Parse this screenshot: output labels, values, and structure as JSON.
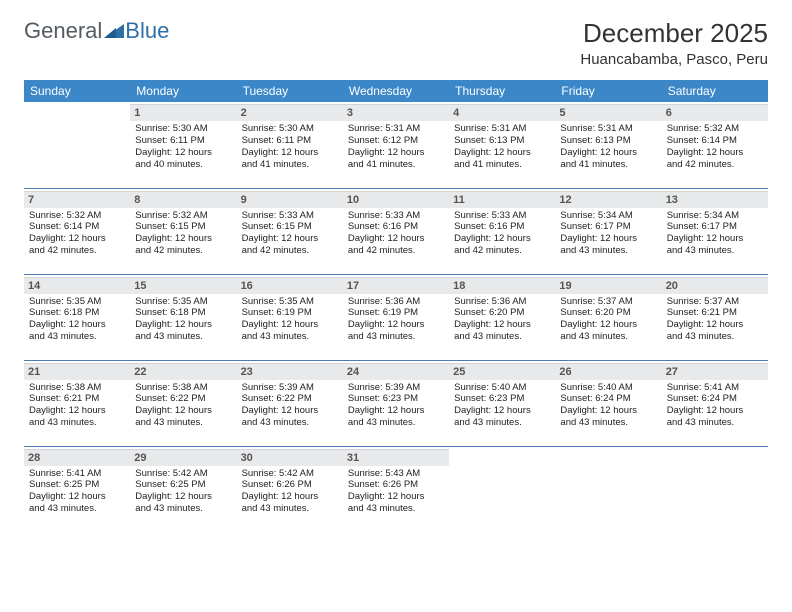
{
  "brand": {
    "part1": "General",
    "part2": "Blue"
  },
  "title": "December 2025",
  "location": "Huancabamba, Pasco, Peru",
  "colors": {
    "header_bg": "#3b87c8",
    "header_fg": "#ffffff",
    "daynum_bg": "#e8e9ea",
    "rule": "#4a7db0",
    "logo_gray": "#555b60",
    "logo_blue": "#2f6fa8"
  },
  "weekdays": [
    "Sunday",
    "Monday",
    "Tuesday",
    "Wednesday",
    "Thursday",
    "Friday",
    "Saturday"
  ],
  "weeks": [
    [
      {
        "n": "",
        "empty": true
      },
      {
        "n": "1",
        "sunrise": "Sunrise: 5:30 AM",
        "sunset": "Sunset: 6:11 PM",
        "day1": "Daylight: 12 hours",
        "day2": "and 40 minutes."
      },
      {
        "n": "2",
        "sunrise": "Sunrise: 5:30 AM",
        "sunset": "Sunset: 6:11 PM",
        "day1": "Daylight: 12 hours",
        "day2": "and 41 minutes."
      },
      {
        "n": "3",
        "sunrise": "Sunrise: 5:31 AM",
        "sunset": "Sunset: 6:12 PM",
        "day1": "Daylight: 12 hours",
        "day2": "and 41 minutes."
      },
      {
        "n": "4",
        "sunrise": "Sunrise: 5:31 AM",
        "sunset": "Sunset: 6:13 PM",
        "day1": "Daylight: 12 hours",
        "day2": "and 41 minutes."
      },
      {
        "n": "5",
        "sunrise": "Sunrise: 5:31 AM",
        "sunset": "Sunset: 6:13 PM",
        "day1": "Daylight: 12 hours",
        "day2": "and 41 minutes."
      },
      {
        "n": "6",
        "sunrise": "Sunrise: 5:32 AM",
        "sunset": "Sunset: 6:14 PM",
        "day1": "Daylight: 12 hours",
        "day2": "and 42 minutes."
      }
    ],
    [
      {
        "n": "7",
        "sunrise": "Sunrise: 5:32 AM",
        "sunset": "Sunset: 6:14 PM",
        "day1": "Daylight: 12 hours",
        "day2": "and 42 minutes."
      },
      {
        "n": "8",
        "sunrise": "Sunrise: 5:32 AM",
        "sunset": "Sunset: 6:15 PM",
        "day1": "Daylight: 12 hours",
        "day2": "and 42 minutes."
      },
      {
        "n": "9",
        "sunrise": "Sunrise: 5:33 AM",
        "sunset": "Sunset: 6:15 PM",
        "day1": "Daylight: 12 hours",
        "day2": "and 42 minutes."
      },
      {
        "n": "10",
        "sunrise": "Sunrise: 5:33 AM",
        "sunset": "Sunset: 6:16 PM",
        "day1": "Daylight: 12 hours",
        "day2": "and 42 minutes."
      },
      {
        "n": "11",
        "sunrise": "Sunrise: 5:33 AM",
        "sunset": "Sunset: 6:16 PM",
        "day1": "Daylight: 12 hours",
        "day2": "and 42 minutes."
      },
      {
        "n": "12",
        "sunrise": "Sunrise: 5:34 AM",
        "sunset": "Sunset: 6:17 PM",
        "day1": "Daylight: 12 hours",
        "day2": "and 43 minutes."
      },
      {
        "n": "13",
        "sunrise": "Sunrise: 5:34 AM",
        "sunset": "Sunset: 6:17 PM",
        "day1": "Daylight: 12 hours",
        "day2": "and 43 minutes."
      }
    ],
    [
      {
        "n": "14",
        "sunrise": "Sunrise: 5:35 AM",
        "sunset": "Sunset: 6:18 PM",
        "day1": "Daylight: 12 hours",
        "day2": "and 43 minutes."
      },
      {
        "n": "15",
        "sunrise": "Sunrise: 5:35 AM",
        "sunset": "Sunset: 6:18 PM",
        "day1": "Daylight: 12 hours",
        "day2": "and 43 minutes."
      },
      {
        "n": "16",
        "sunrise": "Sunrise: 5:35 AM",
        "sunset": "Sunset: 6:19 PM",
        "day1": "Daylight: 12 hours",
        "day2": "and 43 minutes."
      },
      {
        "n": "17",
        "sunrise": "Sunrise: 5:36 AM",
        "sunset": "Sunset: 6:19 PM",
        "day1": "Daylight: 12 hours",
        "day2": "and 43 minutes."
      },
      {
        "n": "18",
        "sunrise": "Sunrise: 5:36 AM",
        "sunset": "Sunset: 6:20 PM",
        "day1": "Daylight: 12 hours",
        "day2": "and 43 minutes."
      },
      {
        "n": "19",
        "sunrise": "Sunrise: 5:37 AM",
        "sunset": "Sunset: 6:20 PM",
        "day1": "Daylight: 12 hours",
        "day2": "and 43 minutes."
      },
      {
        "n": "20",
        "sunrise": "Sunrise: 5:37 AM",
        "sunset": "Sunset: 6:21 PM",
        "day1": "Daylight: 12 hours",
        "day2": "and 43 minutes."
      }
    ],
    [
      {
        "n": "21",
        "sunrise": "Sunrise: 5:38 AM",
        "sunset": "Sunset: 6:21 PM",
        "day1": "Daylight: 12 hours",
        "day2": "and 43 minutes."
      },
      {
        "n": "22",
        "sunrise": "Sunrise: 5:38 AM",
        "sunset": "Sunset: 6:22 PM",
        "day1": "Daylight: 12 hours",
        "day2": "and 43 minutes."
      },
      {
        "n": "23",
        "sunrise": "Sunrise: 5:39 AM",
        "sunset": "Sunset: 6:22 PM",
        "day1": "Daylight: 12 hours",
        "day2": "and 43 minutes."
      },
      {
        "n": "24",
        "sunrise": "Sunrise: 5:39 AM",
        "sunset": "Sunset: 6:23 PM",
        "day1": "Daylight: 12 hours",
        "day2": "and 43 minutes."
      },
      {
        "n": "25",
        "sunrise": "Sunrise: 5:40 AM",
        "sunset": "Sunset: 6:23 PM",
        "day1": "Daylight: 12 hours",
        "day2": "and 43 minutes."
      },
      {
        "n": "26",
        "sunrise": "Sunrise: 5:40 AM",
        "sunset": "Sunset: 6:24 PM",
        "day1": "Daylight: 12 hours",
        "day2": "and 43 minutes."
      },
      {
        "n": "27",
        "sunrise": "Sunrise: 5:41 AM",
        "sunset": "Sunset: 6:24 PM",
        "day1": "Daylight: 12 hours",
        "day2": "and 43 minutes."
      }
    ],
    [
      {
        "n": "28",
        "sunrise": "Sunrise: 5:41 AM",
        "sunset": "Sunset: 6:25 PM",
        "day1": "Daylight: 12 hours",
        "day2": "and 43 minutes."
      },
      {
        "n": "29",
        "sunrise": "Sunrise: 5:42 AM",
        "sunset": "Sunset: 6:25 PM",
        "day1": "Daylight: 12 hours",
        "day2": "and 43 minutes."
      },
      {
        "n": "30",
        "sunrise": "Sunrise: 5:42 AM",
        "sunset": "Sunset: 6:26 PM",
        "day1": "Daylight: 12 hours",
        "day2": "and 43 minutes."
      },
      {
        "n": "31",
        "sunrise": "Sunrise: 5:43 AM",
        "sunset": "Sunset: 6:26 PM",
        "day1": "Daylight: 12 hours",
        "day2": "and 43 minutes."
      },
      {
        "n": "",
        "empty": true
      },
      {
        "n": "",
        "empty": true
      },
      {
        "n": "",
        "empty": true
      }
    ]
  ]
}
